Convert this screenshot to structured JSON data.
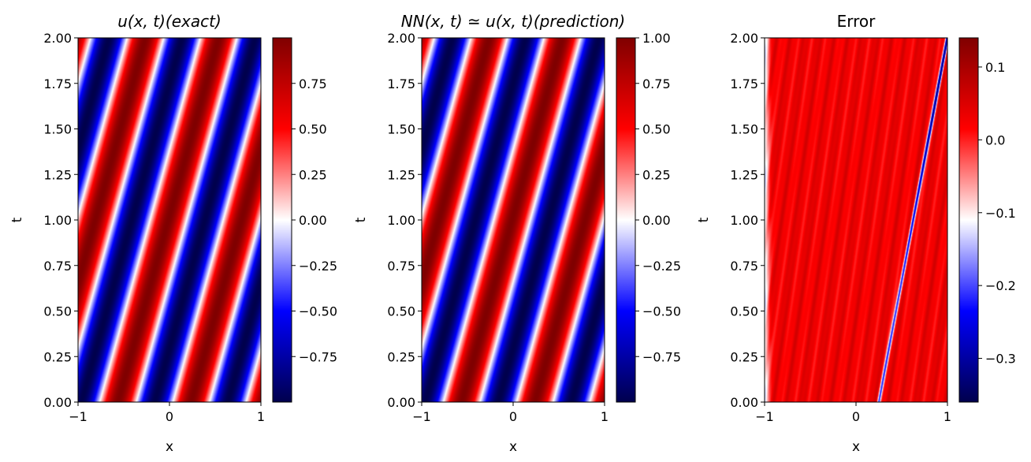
{
  "chart_data": [
    {
      "type": "heatmap",
      "title": "u(x, t)(exact)",
      "title_mathtext": true,
      "xlabel": "x",
      "ylabel": "t",
      "xlim": [
        -1,
        1
      ],
      "ylim": [
        0,
        2
      ],
      "xticks": [
        "−1",
        "0",
        "1"
      ],
      "yticks": [
        "0.00",
        "0.25",
        "0.50",
        "0.75",
        "1.00",
        "1.25",
        "1.50",
        "1.75",
        "2.00"
      ],
      "colormap": "seismic",
      "colorbar": {
        "vmin": -1,
        "vmax": 1,
        "ticks": [
          {
            "value": 0.75,
            "label": "0.75"
          },
          {
            "value": 0.5,
            "label": "0.50"
          },
          {
            "value": 0.25,
            "label": "0.25"
          },
          {
            "value": 0.0,
            "label": "0.00"
          },
          {
            "value": -0.25,
            "label": "−0.25"
          },
          {
            "value": -0.5,
            "label": "−0.50"
          },
          {
            "value": -0.75,
            "label": "−0.75"
          }
        ]
      },
      "field": {
        "kind": "traveling_wave",
        "k": 7.85,
        "c": 0.55,
        "phase": -0.3
      }
    },
    {
      "type": "heatmap",
      "title": "NN(x, t) ≃ u(x, t)(prediction)",
      "title_mathtext": true,
      "xlabel": "x",
      "ylabel": "t",
      "xlim": [
        -1,
        1
      ],
      "ylim": [
        0,
        2
      ],
      "xticks": [
        "−1",
        "0",
        "1"
      ],
      "yticks": [
        "0.00",
        "0.25",
        "0.50",
        "0.75",
        "1.00",
        "1.25",
        "1.50",
        "1.75",
        "2.00"
      ],
      "colormap": "seismic",
      "colorbar": {
        "vmin": -1,
        "vmax": 1,
        "ticks": [
          {
            "value": 1.0,
            "label": "1.00"
          },
          {
            "value": 0.75,
            "label": "0.75"
          },
          {
            "value": 0.5,
            "label": "0.50"
          },
          {
            "value": 0.25,
            "label": "0.25"
          },
          {
            "value": 0.0,
            "label": "0.00"
          },
          {
            "value": -0.25,
            "label": "−0.25"
          },
          {
            "value": -0.5,
            "label": "−0.50"
          },
          {
            "value": -0.75,
            "label": "−0.75"
          }
        ]
      },
      "field": {
        "kind": "traveling_wave",
        "k": 7.85,
        "c": 0.55,
        "phase": -0.3
      }
    },
    {
      "type": "heatmap",
      "title": "Error",
      "title_mathtext": false,
      "xlabel": "x",
      "ylabel": "t",
      "xlim": [
        -1,
        1
      ],
      "ylim": [
        0,
        2
      ],
      "xticks": [
        "−1",
        "0",
        "1"
      ],
      "yticks": [
        "0.00",
        "0.25",
        "0.50",
        "0.75",
        "1.00",
        "1.25",
        "1.50",
        "1.75",
        "2.00"
      ],
      "colormap": "seismic",
      "colorbar": {
        "vmin": -0.36,
        "vmax": 0.14,
        "ticks": [
          {
            "value": 0.1,
            "label": "0.1"
          },
          {
            "value": 0.0,
            "label": "0.0"
          },
          {
            "value": -0.1,
            "label": "−0.1"
          },
          {
            "value": -0.2,
            "label": "−0.2"
          },
          {
            "value": -0.3,
            "label": "−0.3"
          }
        ]
      },
      "field": {
        "kind": "error",
        "base": 0.03,
        "streak_start": [
          0.25,
          0.0
        ],
        "streak_end": [
          1.0,
          2.0
        ]
      }
    }
  ]
}
